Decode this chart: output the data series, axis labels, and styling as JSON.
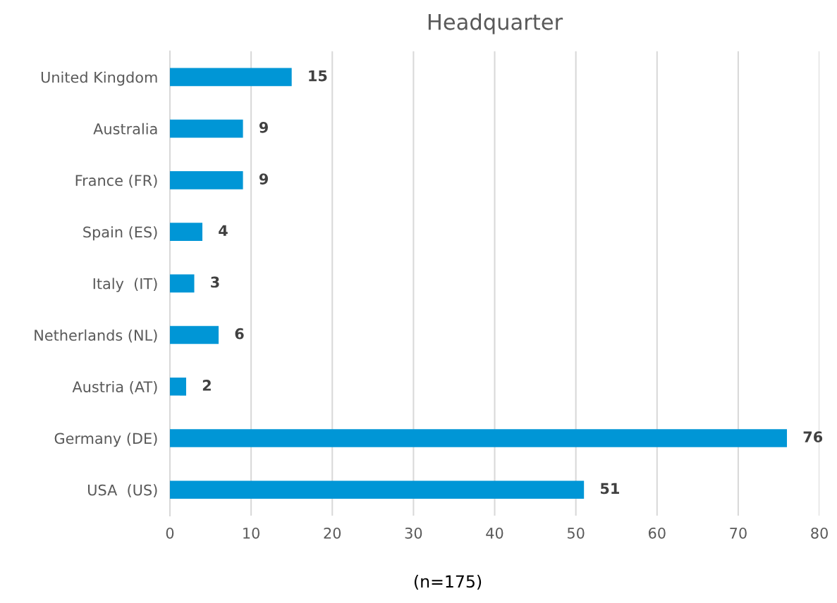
{
  "chart_data": {
    "type": "bar",
    "orientation": "horizontal",
    "title": "Headquarter",
    "categories": [
      "United Kingdom",
      "Australia",
      "France (FR)",
      "Spain (ES)",
      "Italy  (IT)",
      "Netherlands (NL)",
      "Austria (AT)",
      "Germany (DE)",
      "USA  (US)"
    ],
    "values": [
      15,
      9,
      9,
      4,
      3,
      6,
      2,
      76,
      51
    ],
    "color": "#0096d6",
    "xlim": [
      0,
      80
    ],
    "xticks": [
      0,
      10,
      20,
      30,
      40,
      50,
      60,
      70,
      80
    ],
    "grid": "x",
    "data_labels": true,
    "annotations": [
      "(n=175)"
    ]
  }
}
